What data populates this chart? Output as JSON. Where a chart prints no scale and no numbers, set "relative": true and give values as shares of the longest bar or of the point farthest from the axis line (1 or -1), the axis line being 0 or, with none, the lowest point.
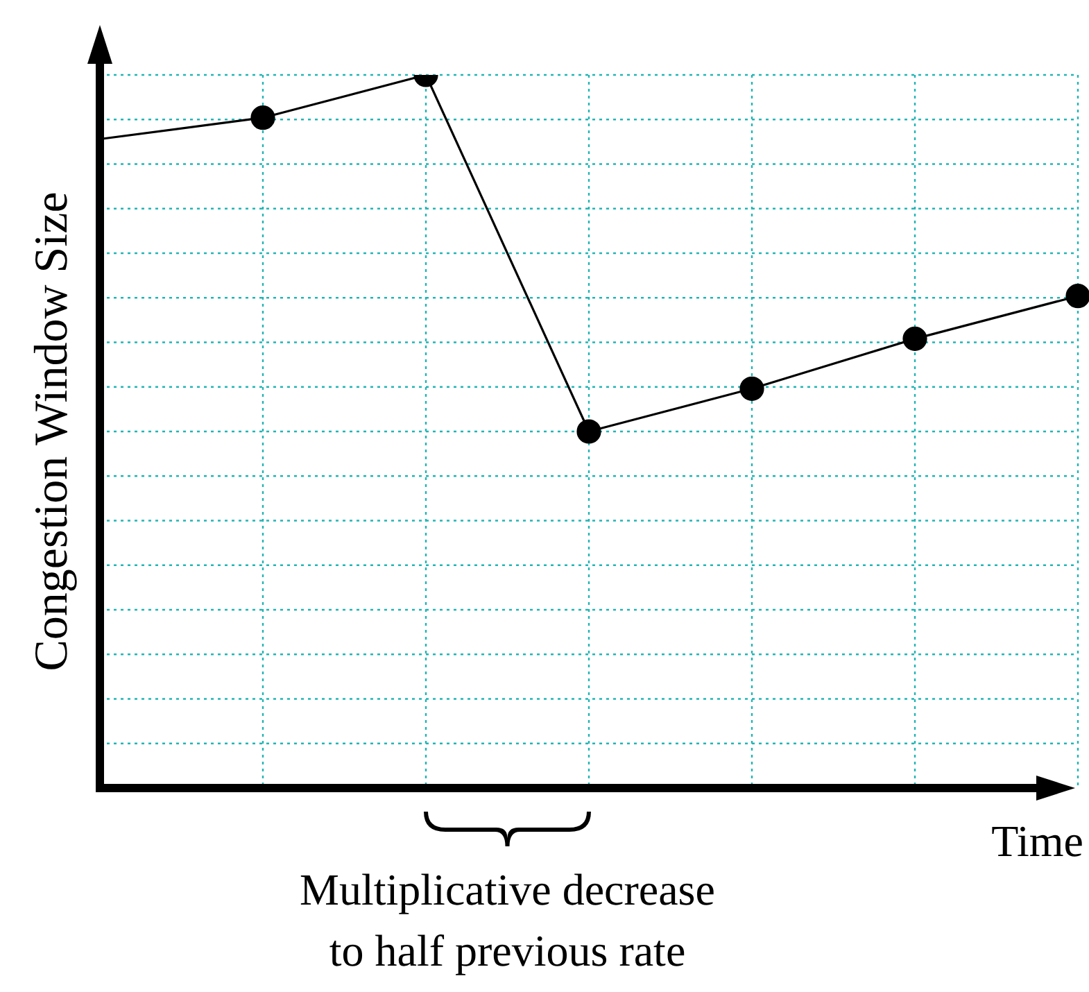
{
  "chart_data": {
    "type": "line",
    "relative": true,
    "xlabel": "Time",
    "ylabel": "Congestion Window Size",
    "categories": [
      null,
      null,
      null,
      null,
      null,
      null,
      null
    ],
    "series": [
      {
        "color": "#000000",
        "values": [
          0.91,
          0.94,
          null,
          null,
          null,
          null,
          null
        ]
      },
      {
        "color": "#000000",
        "marker": "circle",
        "values": [
          null,
          0.94,
          1,
          0.5,
          0.56,
          0.63,
          0.69
        ]
      }
    ],
    "grid": true,
    "annotations": [
      "Multiplicative decrease\nto half previous rate"
    ]
  }
}
